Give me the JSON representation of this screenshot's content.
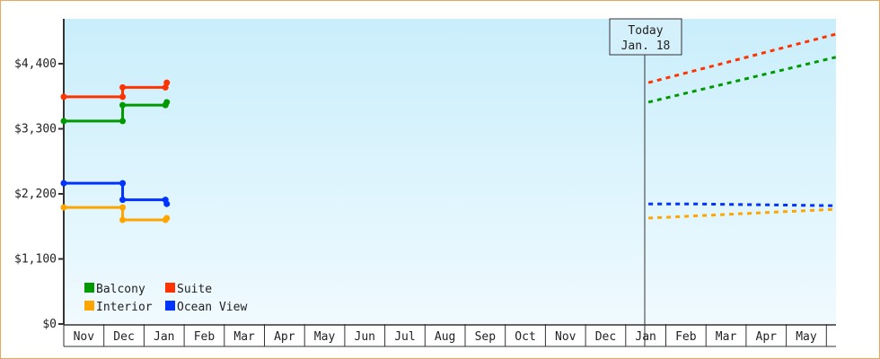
{
  "chart_data": {
    "type": "line",
    "title": "",
    "xlabel": "",
    "ylabel": "",
    "ylim": [
      0,
      4400
    ],
    "y_ticks": [
      "$0",
      "$1,100",
      "$2,200",
      "$3,300",
      "$4,400"
    ],
    "y_tick_values": [
      0,
      1100,
      2200,
      3300,
      4400
    ],
    "x_ticks": [
      "Nov",
      "Dec",
      "Jan",
      "Feb",
      "Mar",
      "Apr",
      "May",
      "Jun",
      "Jul",
      "Aug",
      "Sep",
      "Oct",
      "Nov",
      "Dec",
      "Jan",
      "Feb",
      "Mar",
      "Apr",
      "May"
    ],
    "grid": false,
    "legend_position": "bottom-left",
    "today_marker": {
      "line1": "Today",
      "line2": "Jan. 18",
      "date": "Jan 18"
    },
    "series": [
      {
        "name": "Balcony",
        "color": "#009900",
        "history": [
          [
            "Nov 1",
            3430
          ],
          [
            "Dec 15",
            3430
          ],
          [
            "Dec 15",
            3700
          ],
          [
            "Jan 17",
            3700
          ],
          [
            "Jan 18",
            3750
          ]
        ],
        "forecast": [
          [
            "Jan 18",
            3750
          ],
          [
            "Jun 8",
            4510
          ]
        ]
      },
      {
        "name": "Suite",
        "color": "#ff3300",
        "history": [
          [
            "Nov 1",
            3840
          ],
          [
            "Dec 15",
            3840
          ],
          [
            "Dec 15",
            4000
          ],
          [
            "Jan 17",
            4000
          ],
          [
            "Jan 18",
            4080
          ]
        ],
        "forecast": [
          [
            "Jan 18",
            4080
          ],
          [
            "Jun 8",
            4900
          ]
        ]
      },
      {
        "name": "Interior",
        "color": "#ffa500",
        "history": [
          [
            "Nov 1",
            1970
          ],
          [
            "Dec 15",
            1970
          ],
          [
            "Dec 15",
            1760
          ],
          [
            "Jan 17",
            1760
          ],
          [
            "Jan 18",
            1790
          ]
        ],
        "forecast": [
          [
            "Jan 18",
            1790
          ],
          [
            "Jun 8",
            1940
          ]
        ]
      },
      {
        "name": "Ocean View",
        "color": "#0033ff",
        "history": [
          [
            "Nov 1",
            2380
          ],
          [
            "Dec 15",
            2380
          ],
          [
            "Dec 15",
            2100
          ],
          [
            "Jan 17",
            2100
          ],
          [
            "Jan 18",
            2030
          ]
        ],
        "forecast": [
          [
            "Jan 18",
            2030
          ],
          [
            "Feb 20",
            2030
          ],
          [
            "Jun 8",
            2000
          ]
        ]
      }
    ]
  }
}
